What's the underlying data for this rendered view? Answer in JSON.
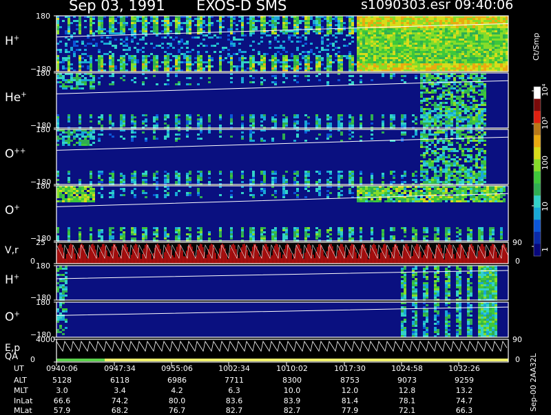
{
  "header": {
    "date": "Sep 03, 1991",
    "instrument": "EXOS-D SMS",
    "file": "s1090303.esr",
    "time": "09:40:06"
  },
  "colorbar": {
    "unit": "Ct/Smp",
    "ticks": [
      "1",
      "10",
      "100",
      "10³",
      "10⁴"
    ],
    "colors": [
      "#08087c",
      "#0a2aa8",
      "#0b56d8",
      "#18a8d6",
      "#32d2c8",
      "#2fae52",
      "#3ec83a",
      "#86dc2a",
      "#d8dc1a",
      "#eaaa10",
      "#b87818",
      "#e02010",
      "#7a0a0a",
      "#ffffff"
    ]
  },
  "panels": [
    {
      "id": "h-plus",
      "label": "H",
      "sup": "+",
      "ymax": "180",
      "ymin": "−180"
    },
    {
      "id": "he-plus",
      "label": "He",
      "sup": "+",
      "ymax": "180",
      "ymin": "−180"
    },
    {
      "id": "o-plusplus",
      "label": "O",
      "sup": "++",
      "ymax": "180",
      "ymin": "−180"
    },
    {
      "id": "o-plus",
      "label": "O",
      "sup": "+",
      "ymax": "180",
      "ymin": "−180"
    },
    {
      "id": "vr",
      "label": "V,r",
      "sup": "",
      "ymax": "25",
      "ymin": "0",
      "right_max": "90",
      "right_min": "0"
    },
    {
      "id": "h-plus-2",
      "label": "H",
      "sup": "+",
      "ymax": "180",
      "ymin": "−180"
    },
    {
      "id": "o-plus-2",
      "label": "O",
      "sup": "+",
      "ymax": "180",
      "ymin": "−180"
    },
    {
      "id": "ep-qa",
      "label": "E,p",
      "label2": "QA",
      "sup": "",
      "ymax": "4000",
      "ymin": "0",
      "right_max": "90",
      "right_min": "0"
    }
  ],
  "side_label": "Sep-00  2AA32L",
  "ephemeris": {
    "rows": [
      {
        "name": "UT",
        "values": [
          "0940:06",
          "0947:34",
          "0955:06",
          "1002:34",
          "1010:02",
          "1017:30",
          "1024:58",
          "1032:26"
        ]
      },
      {
        "name": "ALT",
        "values": [
          "5128",
          "6118",
          "6986",
          "7711",
          "8300",
          "8753",
          "9073",
          "9259"
        ]
      },
      {
        "name": "MLT",
        "values": [
          "3.0",
          "3.4",
          "4.2",
          "6.3",
          "10.0",
          "12.0",
          "12.8",
          "13.2"
        ]
      },
      {
        "name": "InLat",
        "values": [
          "66.6",
          "74.2",
          "80.0",
          "83.6",
          "83.9",
          "81.4",
          "78.1",
          "74.7"
        ]
      },
      {
        "name": "MLat",
        "values": [
          "57.9",
          "68.2",
          "76.7",
          "82.7",
          "82.7",
          "77.9",
          "72.1",
          "66.3"
        ]
      }
    ]
  },
  "chart_data": {
    "type": "heatmap",
    "title": "Sep 03, 1991   EXOS-D SMS",
    "x": [
      "0940:06",
      "0947:34",
      "0955:06",
      "1002:34",
      "1010:02",
      "1017:30",
      "1024:58",
      "1032:26"
    ],
    "color_scale": "log",
    "color_range": [
      1,
      10000
    ],
    "color_unit": "Ct/Smp",
    "series": [
      {
        "name": "H+",
        "ylim": [
          -180,
          180
        ]
      },
      {
        "name": "He+",
        "ylim": [
          -180,
          180
        ]
      },
      {
        "name": "O++",
        "ylim": [
          -180,
          180
        ]
      },
      {
        "name": "O+",
        "ylim": [
          -180,
          180
        ]
      },
      {
        "name": "V,r",
        "ylim": [
          0,
          25
        ],
        "right_ylim": [
          0,
          90
        ]
      },
      {
        "name": "H+",
        "ylim": [
          -180,
          180
        ]
      },
      {
        "name": "O+",
        "ylim": [
          -180,
          180
        ]
      },
      {
        "name": "E,p / QA",
        "ylim": [
          0,
          4000
        ],
        "right_ylim": [
          0,
          90
        ]
      }
    ]
  }
}
